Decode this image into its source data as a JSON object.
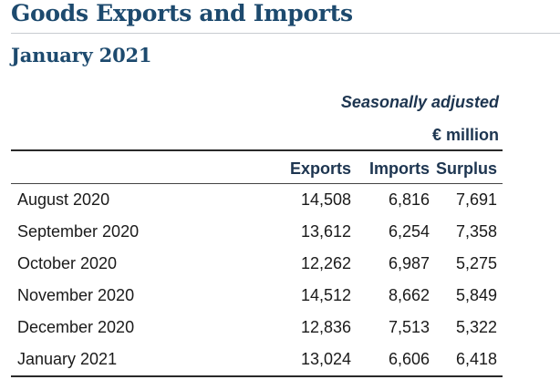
{
  "title": "Goods Exports and Imports",
  "subtitle": "January 2021",
  "notes": {
    "adjustment": "Seasonally adjusted",
    "unit": "€ million"
  },
  "table": {
    "columns": [
      "",
      "Exports",
      "Imports",
      "Surplus"
    ],
    "rows": [
      {
        "month": "August 2020",
        "exports": "14,508",
        "imports": "6,816",
        "surplus": "7,691"
      },
      {
        "month": "September 2020",
        "exports": "13,612",
        "imports": "6,254",
        "surplus": "7,358"
      },
      {
        "month": "October 2020",
        "exports": "12,262",
        "imports": "6,987",
        "surplus": "5,275"
      },
      {
        "month": "November 2020",
        "exports": "14,512",
        "imports": "8,662",
        "surplus": "5,849"
      },
      {
        "month": "December 2020",
        "exports": "12,836",
        "imports": "7,513",
        "surplus": "5,322"
      },
      {
        "month": "January 2021",
        "exports": "13,024",
        "imports": "6,606",
        "surplus": "6,418"
      }
    ]
  },
  "colors": {
    "heading": "#1d4a6e",
    "header_text": "#1d3550",
    "body_text": "#1a1a1a"
  }
}
